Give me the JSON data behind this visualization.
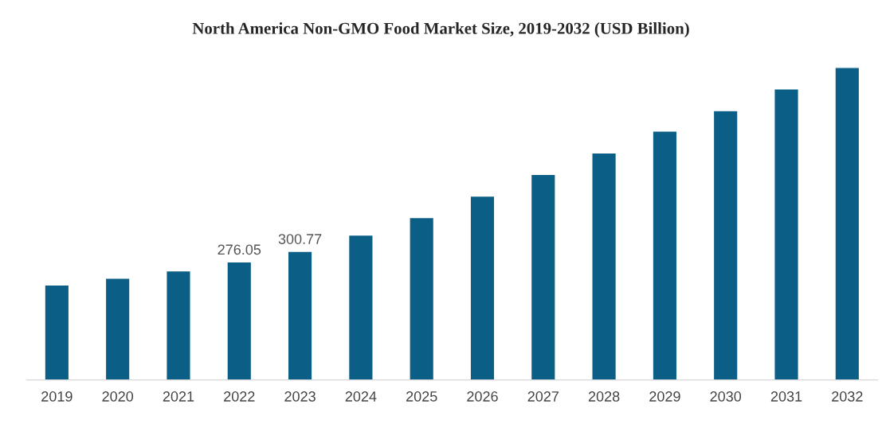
{
  "chart_data": {
    "type": "bar",
    "title": "North America Non-GMO Food Market Size, 2019-2032 (USD Billion)",
    "categories": [
      "2019",
      "2020",
      "2021",
      "2022",
      "2023",
      "2024",
      "2025",
      "2026",
      "2027",
      "2028",
      "2029",
      "2030",
      "2031",
      "2032"
    ],
    "values": [
      222,
      238,
      255,
      276.05,
      300.77,
      339,
      380,
      430,
      481,
      531,
      582,
      630,
      681,
      731
    ],
    "value_labels": [
      null,
      null,
      null,
      "276.05",
      "300.77",
      null,
      null,
      null,
      null,
      null,
      null,
      null,
      null,
      null
    ],
    "color": "#0b5f86",
    "tick_labels": "x",
    "grid": false,
    "legend": false
  }
}
